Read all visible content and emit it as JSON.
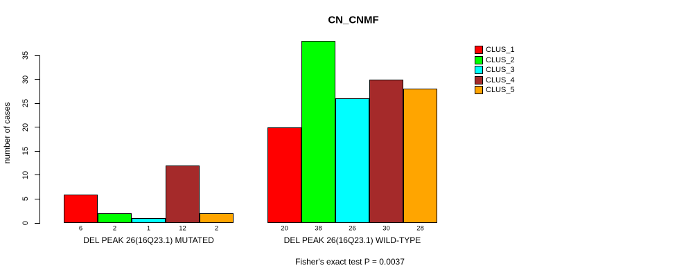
{
  "chart_data": {
    "type": "bar",
    "title": "CN_CNMF",
    "ylabel": "number of cases",
    "footnote": "Fisher's exact test P = 0.0037",
    "yticks": [
      0,
      5,
      10,
      15,
      20,
      25,
      30,
      35
    ],
    "ylim": [
      0,
      38
    ],
    "grid": false,
    "legend_position": "right",
    "legend": [
      {
        "label": "CLUS_1",
        "color": "#FF0000"
      },
      {
        "label": "CLUS_2",
        "color": "#00FF00"
      },
      {
        "label": "CLUS_3",
        "color": "#00FFFF"
      },
      {
        "label": "CLUS_4",
        "color": "#A52A2A"
      },
      {
        "label": "CLUS_5",
        "color": "#FFA500"
      }
    ],
    "groups": [
      {
        "label": "DEL PEAK 26(16Q23.1) MUTATED",
        "categories": [
          "CLUS_1",
          "CLUS_2",
          "CLUS_3",
          "CLUS_4",
          "CLUS_5"
        ],
        "values": [
          6,
          2,
          1,
          12,
          2
        ],
        "bar_labels": [
          "6",
          "2",
          "1",
          "12",
          "2"
        ]
      },
      {
        "label": "DEL PEAK 26(16Q23.1) WILD-TYPE",
        "categories": [
          "CLUS_1",
          "CLUS_2",
          "CLUS_3",
          "CLUS_4",
          "CLUS_5"
        ],
        "values": [
          20,
          38,
          26,
          30,
          28
        ],
        "bar_labels": [
          "20",
          "38",
          "26",
          "30",
          "28"
        ]
      }
    ]
  }
}
